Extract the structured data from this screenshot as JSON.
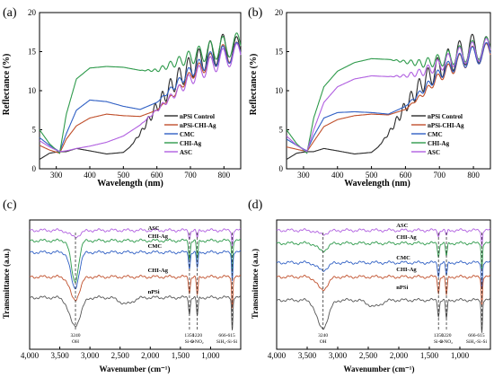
{
  "colors": {
    "nPSi": "#2b2b2b",
    "nPSiCHIAg": "#c0502c",
    "CMC": "#2f5fc4",
    "CHIAg": "#2e9a4b",
    "ASC": "#b05fe0"
  },
  "chart_data": [
    {
      "panel": "(a)",
      "type": "line",
      "xlabel": "Wavelength (nm)",
      "ylabel": "Reflectance (%)",
      "xlim": [
        250,
        850
      ],
      "ylim": [
        0,
        20
      ],
      "xticks": [
        "300",
        "400",
        "500",
        "600",
        "700",
        "800"
      ],
      "yticks": [
        "0",
        "5",
        "10",
        "15",
        "20"
      ],
      "legend": [
        "nPSi Control",
        "nPSi-CHI-Ag",
        "CMC",
        "CHI-Ag",
        "ASC"
      ],
      "legend_position": "bottom-right",
      "series": [
        {
          "name": "nPSi Control",
          "color": "#2b2b2b",
          "x": [
            250,
            280,
            310,
            330,
            360,
            400,
            450,
            500,
            520,
            550,
            600,
            650,
            700,
            750,
            800,
            850
          ],
          "y": [
            1.2,
            2.0,
            2.2,
            2.2,
            2.6,
            2.3,
            1.9,
            2.1,
            2.8,
            4.5,
            8.0,
            11.0,
            13.0,
            14.5,
            15.5,
            15.0
          ],
          "osc_amp": [
            0,
            0,
            0,
            0,
            0,
            0,
            0,
            0,
            0,
            0.2,
            0.8,
            1.2,
            1.5,
            1.7,
            1.8,
            1.8
          ]
        },
        {
          "name": "nPSi-CHI-Ag",
          "color": "#c0502c",
          "x": [
            250,
            280,
            310,
            330,
            360,
            400,
            450,
            500,
            550,
            600,
            650,
            700,
            750,
            800,
            850
          ],
          "y": [
            3.0,
            2.4,
            2.0,
            3.8,
            5.5,
            6.5,
            7.0,
            6.8,
            6.7,
            7.5,
            9.5,
            12.0,
            13.5,
            14.8,
            15.0
          ],
          "osc_amp": [
            0,
            0,
            0,
            0,
            0,
            0,
            0,
            0,
            0,
            0,
            0.3,
            0.6,
            1.0,
            1.2,
            1.3
          ]
        },
        {
          "name": "CMC",
          "color": "#2f5fc4",
          "x": [
            250,
            280,
            310,
            330,
            360,
            400,
            450,
            500,
            550,
            600,
            650,
            700,
            750,
            800,
            850
          ],
          "y": [
            4.0,
            3.0,
            2.2,
            4.5,
            7.5,
            8.8,
            8.6,
            8.0,
            7.6,
            8.5,
            10.5,
            12.5,
            13.8,
            14.6,
            15.0
          ],
          "osc_amp": [
            0,
            0,
            0,
            0,
            0,
            0,
            0,
            0,
            0,
            0,
            0.4,
            0.7,
            1.0,
            1.2,
            1.3
          ]
        },
        {
          "name": "CHI-Ag",
          "color": "#2e9a4b",
          "x": [
            250,
            280,
            310,
            330,
            360,
            400,
            450,
            500,
            550,
            600,
            650,
            700,
            750,
            800,
            850
          ],
          "y": [
            5.0,
            3.2,
            2.0,
            7.0,
            11.5,
            12.9,
            13.1,
            13.0,
            12.6,
            12.6,
            13.5,
            14.3,
            15.0,
            15.6,
            16.0
          ],
          "osc_amp": [
            0,
            0,
            0,
            0,
            0,
            0,
            0,
            0,
            0,
            0.2,
            0.5,
            0.9,
            1.2,
            1.4,
            1.5
          ]
        },
        {
          "name": "ASC",
          "color": "#b05fe0",
          "x": [
            250,
            280,
            310,
            330,
            360,
            400,
            450,
            500,
            550,
            600,
            650,
            700,
            750,
            800,
            850
          ],
          "y": [
            3.6,
            2.8,
            2.2,
            2.3,
            2.6,
            2.9,
            3.4,
            4.2,
            5.6,
            7.5,
            9.5,
            11.5,
            13.0,
            14.2,
            14.8
          ],
          "osc_amp": [
            0,
            0,
            0,
            0,
            0,
            0,
            0,
            0,
            0,
            0.2,
            0.5,
            0.8,
            1.1,
            1.3,
            1.4
          ]
        }
      ]
    },
    {
      "panel": "(b)",
      "type": "line",
      "xlabel": "Wavelength (nm)",
      "ylabel": "Reflectance (%)",
      "xlim": [
        250,
        850
      ],
      "ylim": [
        0,
        20
      ],
      "xticks": [
        "300",
        "400",
        "500",
        "600",
        "700",
        "800"
      ],
      "yticks": [
        "0",
        "5",
        "10",
        "15",
        "20"
      ],
      "legend": [
        "nPSi Control",
        "nPSi-CHI-Ag",
        "CMC",
        "CHI-Ag",
        "ASC"
      ],
      "legend_position": "bottom-right",
      "series": [
        {
          "name": "nPSi Control",
          "color": "#2b2b2b",
          "x": [
            250,
            280,
            310,
            330,
            360,
            400,
            450,
            500,
            520,
            550,
            600,
            650,
            700,
            750,
            800,
            850
          ],
          "y": [
            1.2,
            2.0,
            2.2,
            2.2,
            2.6,
            2.3,
            1.9,
            2.1,
            2.8,
            4.5,
            8.0,
            11.0,
            13.0,
            14.5,
            15.5,
            15.0
          ],
          "osc_amp": [
            0,
            0,
            0,
            0,
            0,
            0,
            0,
            0,
            0,
            0.2,
            0.8,
            1.2,
            1.5,
            1.7,
            1.8,
            1.8
          ]
        },
        {
          "name": "nPSi-CHI-Ag",
          "color": "#c0502c",
          "x": [
            250,
            280,
            310,
            330,
            360,
            400,
            450,
            500,
            550,
            600,
            650,
            700,
            750,
            800,
            850
          ],
          "y": [
            2.8,
            2.5,
            2.2,
            3.5,
            5.4,
            6.3,
            6.8,
            7.0,
            6.9,
            7.6,
            9.5,
            11.8,
            13.4,
            14.6,
            14.8
          ],
          "osc_amp": [
            0,
            0,
            0,
            0,
            0,
            0,
            0,
            0,
            0,
            0,
            0.3,
            0.6,
            1.0,
            1.2,
            1.3
          ]
        },
        {
          "name": "CMC",
          "color": "#2f5fc4",
          "x": [
            250,
            280,
            310,
            330,
            360,
            400,
            450,
            500,
            550,
            600,
            650,
            700,
            750,
            800,
            850
          ],
          "y": [
            3.8,
            3.0,
            2.3,
            4.2,
            6.5,
            7.2,
            7.3,
            7.2,
            7.0,
            8.0,
            10.0,
            12.2,
            13.6,
            14.5,
            15.0
          ],
          "osc_amp": [
            0,
            0,
            0,
            0,
            0,
            0,
            0,
            0,
            0,
            0,
            0.4,
            0.7,
            1.0,
            1.2,
            1.3
          ]
        },
        {
          "name": "CHI-Ag",
          "color": "#2e9a4b",
          "x": [
            250,
            280,
            310,
            330,
            360,
            400,
            450,
            500,
            550,
            600,
            650,
            700,
            750,
            800,
            850
          ],
          "y": [
            5.0,
            3.2,
            2.0,
            6.5,
            10.5,
            12.5,
            13.6,
            14.1,
            14.0,
            13.7,
            13.5,
            13.9,
            14.5,
            15.2,
            15.6
          ],
          "osc_amp": [
            0,
            0,
            0,
            0,
            0,
            0,
            0,
            0,
            0,
            0.2,
            0.5,
            0.8,
            1.1,
            1.3,
            1.4
          ]
        },
        {
          "name": "ASC",
          "color": "#b05fe0",
          "x": [
            250,
            280,
            310,
            330,
            360,
            400,
            450,
            500,
            550,
            600,
            650,
            700,
            750,
            800,
            850
          ],
          "y": [
            4.2,
            3.0,
            2.2,
            5.0,
            8.5,
            10.5,
            11.5,
            11.9,
            11.8,
            11.9,
            12.4,
            13.3,
            14.3,
            15.0,
            15.4
          ],
          "osc_amp": [
            0,
            0,
            0,
            0,
            0,
            0,
            0,
            0,
            0,
            0.2,
            0.5,
            0.8,
            1.1,
            1.3,
            1.4
          ]
        }
      ]
    },
    {
      "panel": "(c)",
      "type": "line",
      "xlabel": "Wavenumber (cm⁻¹)",
      "ylabel": "Transmittance (a.u.)",
      "xlim": [
        4000,
        500
      ],
      "xticks": [
        "4,000",
        "3,500",
        "3,000",
        "2,500",
        "2,000",
        "1,500",
        "1,000"
      ],
      "series_labels": [
        "ASC",
        "CHI-Ag",
        "CMC",
        "CHI-Ag",
        "nPSi"
      ],
      "annotations": [
        {
          "wn": 3240,
          "text": [
            "3240",
            "OH"
          ]
        },
        {
          "wn": 1350,
          "text": [
            "1350",
            "Si-O"
          ]
        },
        {
          "wn": 1220,
          "text": [
            "1220",
            "a-NO₂"
          ]
        },
        {
          "wn": 640,
          "text": [
            "666-615",
            "SiH₂-Si-Si"
          ]
        }
      ],
      "series": [
        {
          "name": "ASC",
          "color": "#b05fe0",
          "offset": 0.92,
          "dips": [
            [
              3250,
              0.05,
              250
            ],
            [
              1350,
              0.06,
              40
            ],
            [
              1220,
              0.06,
              40
            ],
            [
              640,
              0.12,
              30
            ]
          ]
        },
        {
          "name": "CHI-Ag",
          "color": "#2e9a4b",
          "offset": 0.84,
          "dips": [
            [
              3250,
              0.32,
              170
            ],
            [
              1350,
              0.14,
              40
            ],
            [
              1220,
              0.14,
              40
            ],
            [
              640,
              0.24,
              30
            ]
          ]
        },
        {
          "name": "CMC",
          "color": "#2f5fc4",
          "offset": 0.75,
          "dips": [
            [
              3250,
              0.28,
              190
            ],
            [
              1350,
              0.12,
              40
            ],
            [
              1220,
              0.12,
              40
            ],
            [
              640,
              0.22,
              30
            ]
          ]
        },
        {
          "name": "CHI-Ag",
          "color": "#c0502c",
          "offset": 0.56,
          "dips": [
            [
              3250,
              0.18,
              220
            ],
            [
              1350,
              0.12,
              40
            ],
            [
              1220,
              0.14,
              40
            ],
            [
              640,
              0.24,
              30
            ]
          ]
        },
        {
          "name": "nPSi",
          "color": "#555555",
          "offset": 0.4,
          "dips": [
            [
              3250,
              0.22,
              260
            ],
            [
              2400,
              0.05,
              300
            ],
            [
              1350,
              0.12,
              40
            ],
            [
              1220,
              0.14,
              40
            ],
            [
              640,
              0.25,
              30
            ]
          ]
        }
      ]
    },
    {
      "panel": "(d)",
      "type": "line",
      "xlabel": "Wavenumber (cm⁻¹)",
      "ylabel": "Transmittance (a.u.)",
      "xlim": [
        4000,
        500
      ],
      "xticks": [
        "4,000",
        "3,500",
        "3,000",
        "2,500",
        "2,000",
        "1,500",
        "1,000"
      ],
      "series_labels": [
        "ASC",
        "CHI-Ag",
        "CMC",
        "CHI-Ag",
        "nPSi"
      ],
      "annotations": [
        {
          "wn": 3240,
          "text": [
            "3240",
            "OH"
          ]
        },
        {
          "wn": 1350,
          "text": [
            "1350",
            "Si-O"
          ]
        },
        {
          "wn": 1220,
          "text": [
            "1220",
            "a-NO₂"
          ]
        },
        {
          "wn": 640,
          "text": [
            "666-615",
            "SiH₂-Si-Si"
          ]
        }
      ],
      "series": [
        {
          "name": "ASC",
          "color": "#b05fe0",
          "offset": 0.92,
          "dips": [
            [
              3250,
              0.03,
              250
            ],
            [
              1350,
              0.04,
              40
            ],
            [
              1220,
              0.04,
              40
            ],
            [
              640,
              0.12,
              30
            ]
          ]
        },
        {
          "name": "CHI-Ag",
          "color": "#2e9a4b",
          "offset": 0.82,
          "dips": [
            [
              3250,
              0.06,
              220
            ],
            [
              1350,
              0.1,
              40
            ],
            [
              1220,
              0.1,
              40
            ],
            [
              640,
              0.2,
              30
            ]
          ]
        },
        {
          "name": "CMC",
          "color": "#2f5fc4",
          "offset": 0.67,
          "dips": [
            [
              3250,
              0.06,
              240
            ],
            [
              1350,
              0.1,
              40
            ],
            [
              1220,
              0.1,
              40
            ],
            [
              640,
              0.2,
              30
            ]
          ]
        },
        {
          "name": "CHI-Ag",
          "color": "#c0502c",
          "offset": 0.56,
          "dips": [
            [
              3250,
              0.1,
              240
            ],
            [
              1350,
              0.12,
              40
            ],
            [
              1220,
              0.14,
              40
            ],
            [
              640,
              0.22,
              30
            ]
          ]
        },
        {
          "name": "nPSi",
          "color": "#555555",
          "offset": 0.38,
          "dips": [
            [
              3250,
              0.22,
              260
            ],
            [
              2400,
              0.05,
              300
            ],
            [
              1350,
              0.12,
              40
            ],
            [
              1220,
              0.14,
              40
            ],
            [
              640,
              0.25,
              30
            ]
          ]
        }
      ]
    }
  ]
}
